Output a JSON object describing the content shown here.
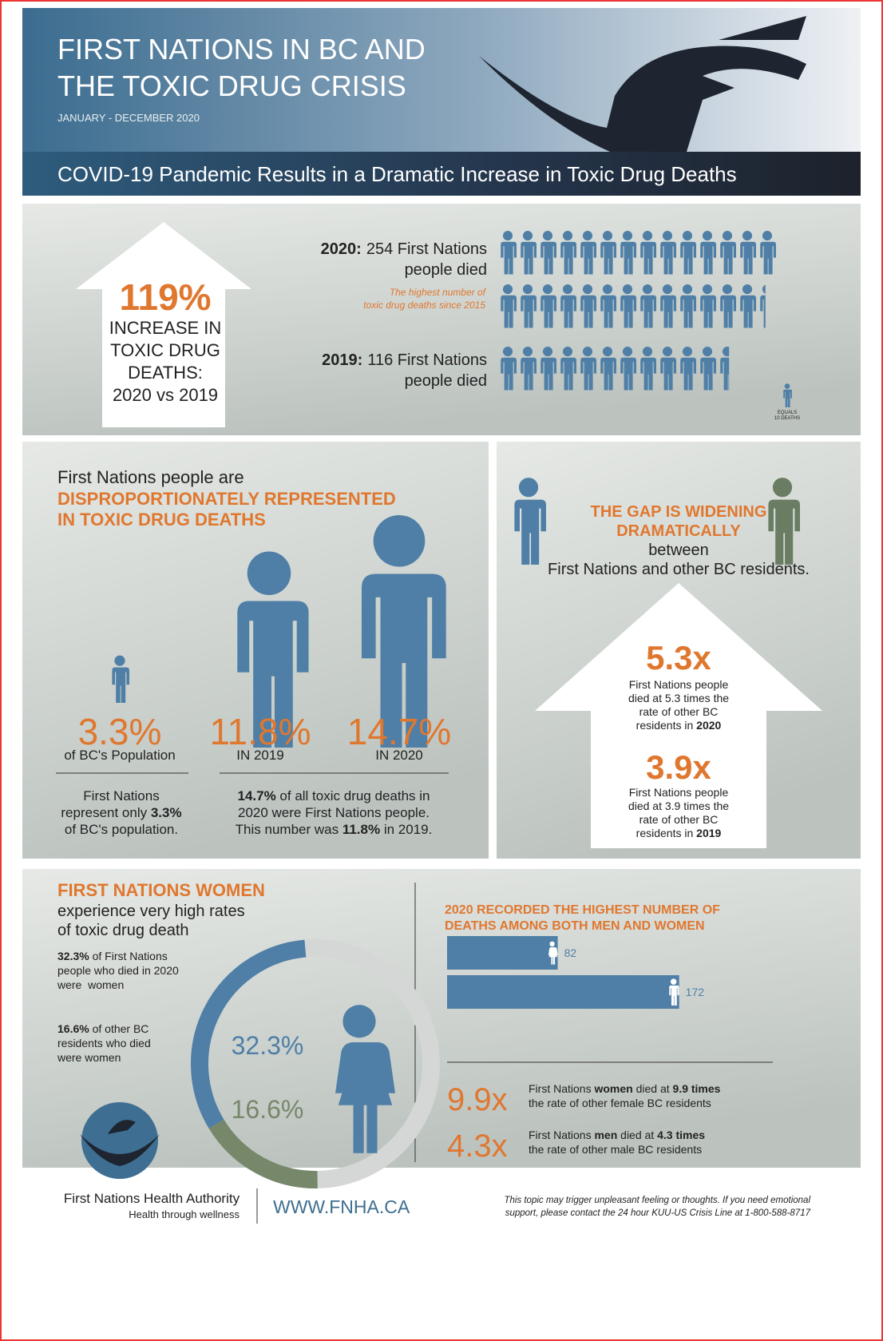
{
  "header": {
    "title_lines": [
      "FIRST NATIONS IN BC AND",
      "THE TOXIC DRUG CRISIS"
    ],
    "date_range": "JANUARY - DECEMBER 2020",
    "banner": "COVID-19 Pandemic Results in a Dramatic Increase in Toxic Drug Deaths"
  },
  "increase": {
    "percent": "119%",
    "caption_lines": [
      "INCREASE IN",
      "TOXIC DRUG",
      "DEATHS:",
      "2020 vs 2019"
    ],
    "year_2020": {
      "year": "2020:",
      "line1": "254 First Nations",
      "line2": "people died",
      "note_lines": [
        "The highest number of",
        "toxic drug deaths since 2015"
      ]
    },
    "year_2019": {
      "year": "2019:",
      "line1": "116 First Nations",
      "line2": "people died"
    },
    "legend_lines": [
      "EQUALS",
      "10 DEATHS"
    ]
  },
  "representation": {
    "intro": "First Nations people are",
    "headline_lines": [
      "DISPROPORTIONATELY REPRESENTED",
      "IN TOXIC DRUG DEATHS"
    ],
    "figures": [
      {
        "value": "3.3%",
        "caption": "of BC's Population"
      },
      {
        "value": "11.8%",
        "caption": "IN 2019"
      },
      {
        "value": "14.7%",
        "caption": "IN 2020"
      }
    ],
    "note_left": [
      [
        {
          "text": "First Nations"
        }
      ],
      [
        {
          "text": "represent only "
        },
        {
          "text": "3.3%",
          "bold": true
        }
      ],
      [
        {
          "text": "of BC's population."
        }
      ]
    ],
    "note_right": [
      [
        {
          "text": "14.7%",
          "bold": true
        },
        {
          "text": " of all toxic drug deaths in"
        }
      ],
      [
        {
          "text": "2020 were First Nations people."
        }
      ],
      [
        {
          "text": "This number was "
        },
        {
          "text": "11.8%",
          "bold": true
        },
        {
          "text": " in 2019."
        }
      ]
    ]
  },
  "gap": {
    "headline_lines": [
      "THE GAP IS WIDENING",
      "DRAMATICALLY"
    ],
    "sub_lines": [
      "between",
      "First Nations and other BC residents."
    ],
    "rate_2020": {
      "value": "5.3x",
      "lines": [
        [
          {
            "text": "First Nations people"
          }
        ],
        [
          {
            "text": "died at 5.3 times the"
          }
        ],
        [
          {
            "text": "rate of other BC"
          }
        ],
        [
          {
            "text": "residents in "
          },
          {
            "text": "2020",
            "bold": true
          }
        ]
      ]
    },
    "rate_2019": {
      "value": "3.9x",
      "lines": [
        [
          {
            "text": "First Nations people"
          }
        ],
        [
          {
            "text": "died at 3.9 times the"
          }
        ],
        [
          {
            "text": "rate of other BC"
          }
        ],
        [
          {
            "text": "residents in "
          },
          {
            "text": "2019",
            "bold": true
          }
        ]
      ]
    }
  },
  "women": {
    "headline": "FIRST NATIONS WOMEN",
    "sub_lines": [
      "experience very high rates",
      "of toxic drug death"
    ],
    "stat_1": [
      [
        {
          "text": "32.3%",
          "bold": true
        },
        {
          "text": " of First Nations"
        }
      ],
      [
        {
          "text": "people who died in 2020"
        }
      ],
      [
        {
          "text": "were  women"
        }
      ]
    ],
    "stat_2": [
      [
        {
          "text": "16.6%",
          "bold": true
        },
        {
          "text": " of other BC"
        }
      ],
      [
        {
          "text": "residents who died"
        }
      ],
      [
        {
          "text": "were women"
        }
      ]
    ],
    "donut": [
      {
        "value": 32.3,
        "label": "32.3%",
        "color": "#4f7fa6"
      },
      {
        "value": 16.6,
        "label": "16.6%",
        "color": "#76876a"
      }
    ]
  },
  "gender": {
    "headline_lines": [
      "2020 RECORDED THE HIGHEST NUMBER OF",
      "DEATHS AMONG BOTH MEN AND WOMEN"
    ],
    "bars": [
      {
        "value": 82
      },
      {
        "value": 172
      }
    ],
    "rates": [
      {
        "value": "9.9x",
        "lines": [
          [
            {
              "text": "First Nations "
            },
            {
              "text": "women",
              "bold": true
            },
            {
              "text": " died at "
            },
            {
              "text": "9.9 times",
              "bold": true
            }
          ],
          [
            {
              "text": "the rate of other female BC residents"
            }
          ]
        ]
      },
      {
        "value": "4.3x",
        "lines": [
          [
            {
              "text": "First Nations "
            },
            {
              "text": "men",
              "bold": true
            },
            {
              "text": " died at "
            },
            {
              "text": "4.3 times",
              "bold": true
            }
          ],
          [
            {
              "text": "the rate of other male BC residents"
            }
          ]
        ]
      }
    ]
  },
  "footer": {
    "org": "First Nations Health Authority",
    "tagline": "Health through wellness",
    "url": "WWW.FNHA.CA",
    "disclaimer_lines": [
      "This topic may trigger unpleasant feeling or thoughts. If you need emotional",
      "support, please contact the 24 hour KUU-US Crisis Line at 1-800-588-8717"
    ]
  }
}
